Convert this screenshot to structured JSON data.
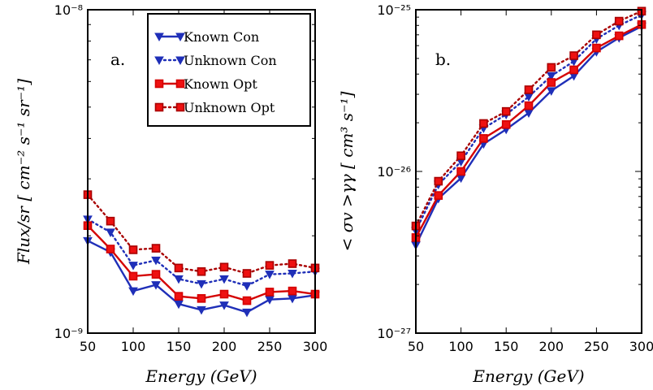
{
  "colors": {
    "known_con": "#1f2fb8",
    "unknown_con": "#1f2fb8",
    "known_opt": "#d40000",
    "unknown_opt": "#a80000",
    "marker_fill": "#ee1111"
  },
  "chart_data": [
    {
      "type": "line",
      "panel_label": "a.",
      "xlabel": "Energy (GeV)",
      "ylabel": "Flux/sr [ cm⁻² s⁻¹ sr⁻¹]",
      "xlim": [
        50,
        300
      ],
      "ylim": [
        1e-09,
        1e-08
      ],
      "yscale": "log",
      "x_ticks": [
        50,
        100,
        150,
        200,
        250,
        300
      ],
      "y_ticks": [
        {
          "value": 1e-09,
          "label": "10⁻⁹"
        },
        {
          "value": 1e-08,
          "label": "10⁻⁸"
        }
      ],
      "legend": "top-right",
      "x": [
        50,
        75,
        100,
        125,
        150,
        175,
        200,
        225,
        250,
        275,
        300
      ],
      "series": [
        {
          "name": "Known Con",
          "style": "solid",
          "marker": "triangle",
          "color_key": "known_con",
          "values": [
            1.93e-09,
            1.78e-09,
            1.35e-09,
            1.41e-09,
            1.23e-09,
            1.18e-09,
            1.22e-09,
            1.16e-09,
            1.27e-09,
            1.28e-09,
            1.31e-09
          ]
        },
        {
          "name": "Unknown Con",
          "style": "dotted",
          "marker": "triangle",
          "color_key": "unknown_con",
          "values": [
            2.25e-09,
            2.05e-09,
            1.62e-09,
            1.68e-09,
            1.47e-09,
            1.42e-09,
            1.47e-09,
            1.4e-09,
            1.52e-09,
            1.53e-09,
            1.55e-09
          ]
        },
        {
          "name": "Known Opt",
          "style": "solid",
          "marker": "square",
          "color_key": "known_opt",
          "values": [
            2.15e-09,
            1.82e-09,
            1.5e-09,
            1.52e-09,
            1.3e-09,
            1.28e-09,
            1.32e-09,
            1.26e-09,
            1.34e-09,
            1.35e-09,
            1.32e-09
          ]
        },
        {
          "name": "Unknown Opt",
          "style": "dotted",
          "marker": "square",
          "color_key": "unknown_opt",
          "values": [
            2.68e-09,
            2.22e-09,
            1.81e-09,
            1.83e-09,
            1.59e-09,
            1.55e-09,
            1.6e-09,
            1.53e-09,
            1.62e-09,
            1.64e-09,
            1.59e-09
          ]
        }
      ]
    },
    {
      "type": "line",
      "panel_label": "b.",
      "xlabel": "Energy (GeV)",
      "ylabel": "< σv >γγ [ cm³ s⁻¹]",
      "xlim": [
        50,
        300
      ],
      "ylim": [
        1e-27,
        1e-25
      ],
      "yscale": "log",
      "x_ticks": [
        50,
        100,
        150,
        200,
        250,
        300
      ],
      "y_ticks": [
        {
          "value": 1e-27,
          "label": "10⁻²⁷"
        },
        {
          "value": 1e-26,
          "label": "10⁻²⁶"
        },
        {
          "value": 1e-25,
          "label": "10⁻²⁵"
        }
      ],
      "legend": "none",
      "x": [
        50,
        75,
        100,
        125,
        150,
        175,
        200,
        225,
        250,
        275,
        300
      ],
      "series": [
        {
          "name": "Known Con",
          "style": "solid",
          "marker": "triangle",
          "color_key": "known_con",
          "values": [
            3.5e-27,
            6.8e-27,
            9.1e-27,
            1.48e-26,
            1.82e-26,
            2.3e-26,
            3.15e-26,
            3.9e-26,
            5.5e-26,
            6.7e-26,
            7.9e-26
          ]
        },
        {
          "name": "Unknown Con",
          "style": "dotted",
          "marker": "triangle",
          "color_key": "unknown_con",
          "values": [
            4.3e-27,
            8.3e-27,
            1.15e-26,
            1.85e-26,
            2.25e-26,
            2.9e-26,
            3.9e-26,
            4.8e-26,
            6.6e-26,
            8e-26,
            9.3e-26
          ]
        },
        {
          "name": "Known Opt",
          "style": "solid",
          "marker": "square",
          "color_key": "known_opt",
          "values": [
            3.9e-27,
            7.1e-27,
            1e-26,
            1.6e-26,
            1.95e-26,
            2.55e-26,
            3.55e-26,
            4.25e-26,
            5.8e-26,
            6.9e-26,
            8.1e-26
          ]
        },
        {
          "name": "Unknown Opt",
          "style": "dotted",
          "marker": "square",
          "color_key": "unknown_opt",
          "values": [
            4.6e-27,
            8.7e-27,
            1.25e-26,
            1.98e-26,
            2.35e-26,
            3.2e-26,
            4.4e-26,
            5.2e-26,
            7e-26,
            8.5e-26,
            9.8e-26
          ]
        }
      ]
    }
  ]
}
